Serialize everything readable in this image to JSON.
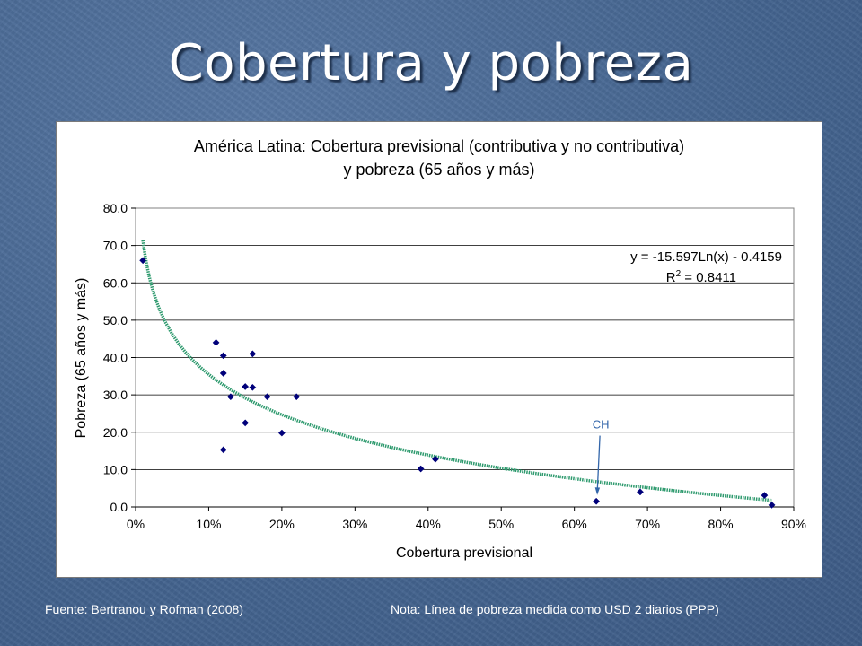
{
  "slide": {
    "title": "Cobertura y pobreza",
    "footer_source": "Fuente: Bertranou y Rofman (2008)",
    "footer_note": "Nota: Línea de pobreza medida como USD 2 diarios (PPP)"
  },
  "chart_data": {
    "type": "scatter",
    "title": "América Latina: Cobertura previsional (contributiva y no contributiva)",
    "subtitle": "y pobreza (65 años y más)",
    "xlabel": "Cobertura previsional",
    "ylabel": "Pobreza (65 años y más)",
    "xlim": [
      0,
      0.9
    ],
    "ylim": [
      0,
      80
    ],
    "x_ticks": [
      "0%",
      "10%",
      "20%",
      "30%",
      "40%",
      "50%",
      "60%",
      "70%",
      "80%",
      "90%"
    ],
    "y_ticks": [
      "0.0",
      "10.0",
      "20.0",
      "30.0",
      "40.0",
      "50.0",
      "60.0",
      "70.0",
      "80.0"
    ],
    "grid": "horizontal",
    "colors": {
      "points": "#00007a",
      "trendline": "#2e9a6e",
      "annotation": "#3366aa"
    },
    "series": [
      {
        "points": [
          {
            "x": 0.01,
            "y": 66.0
          },
          {
            "x": 0.11,
            "y": 44.0
          },
          {
            "x": 0.12,
            "y": 40.5
          },
          {
            "x": 0.12,
            "y": 35.8
          },
          {
            "x": 0.12,
            "y": 15.3
          },
          {
            "x": 0.13,
            "y": 29.5
          },
          {
            "x": 0.15,
            "y": 32.2
          },
          {
            "x": 0.15,
            "y": 22.5
          },
          {
            "x": 0.16,
            "y": 41.0
          },
          {
            "x": 0.16,
            "y": 32.0
          },
          {
            "x": 0.18,
            "y": 29.5
          },
          {
            "x": 0.2,
            "y": 19.8
          },
          {
            "x": 0.22,
            "y": 29.5
          },
          {
            "x": 0.39,
            "y": 10.2
          },
          {
            "x": 0.41,
            "y": 12.8
          },
          {
            "x": 0.63,
            "y": 1.5
          },
          {
            "x": 0.69,
            "y": 4.0
          },
          {
            "x": 0.86,
            "y": 3.1
          },
          {
            "x": 0.87,
            "y": 0.5
          }
        ]
      }
    ],
    "trendline": {
      "type": "logarithmic",
      "a": -15.597,
      "b": -0.4159,
      "x_from": 0.01,
      "x_to": 0.87,
      "equation_label": "y = -15.597Ln(x) - 0.4159",
      "r2_label_prefix": "R",
      "r2_label_sup": "2",
      "r2_label_value": " = 0.8411"
    },
    "annotations": [
      {
        "text": "CH",
        "target": {
          "x": 0.63,
          "y": 1.5
        }
      }
    ]
  }
}
